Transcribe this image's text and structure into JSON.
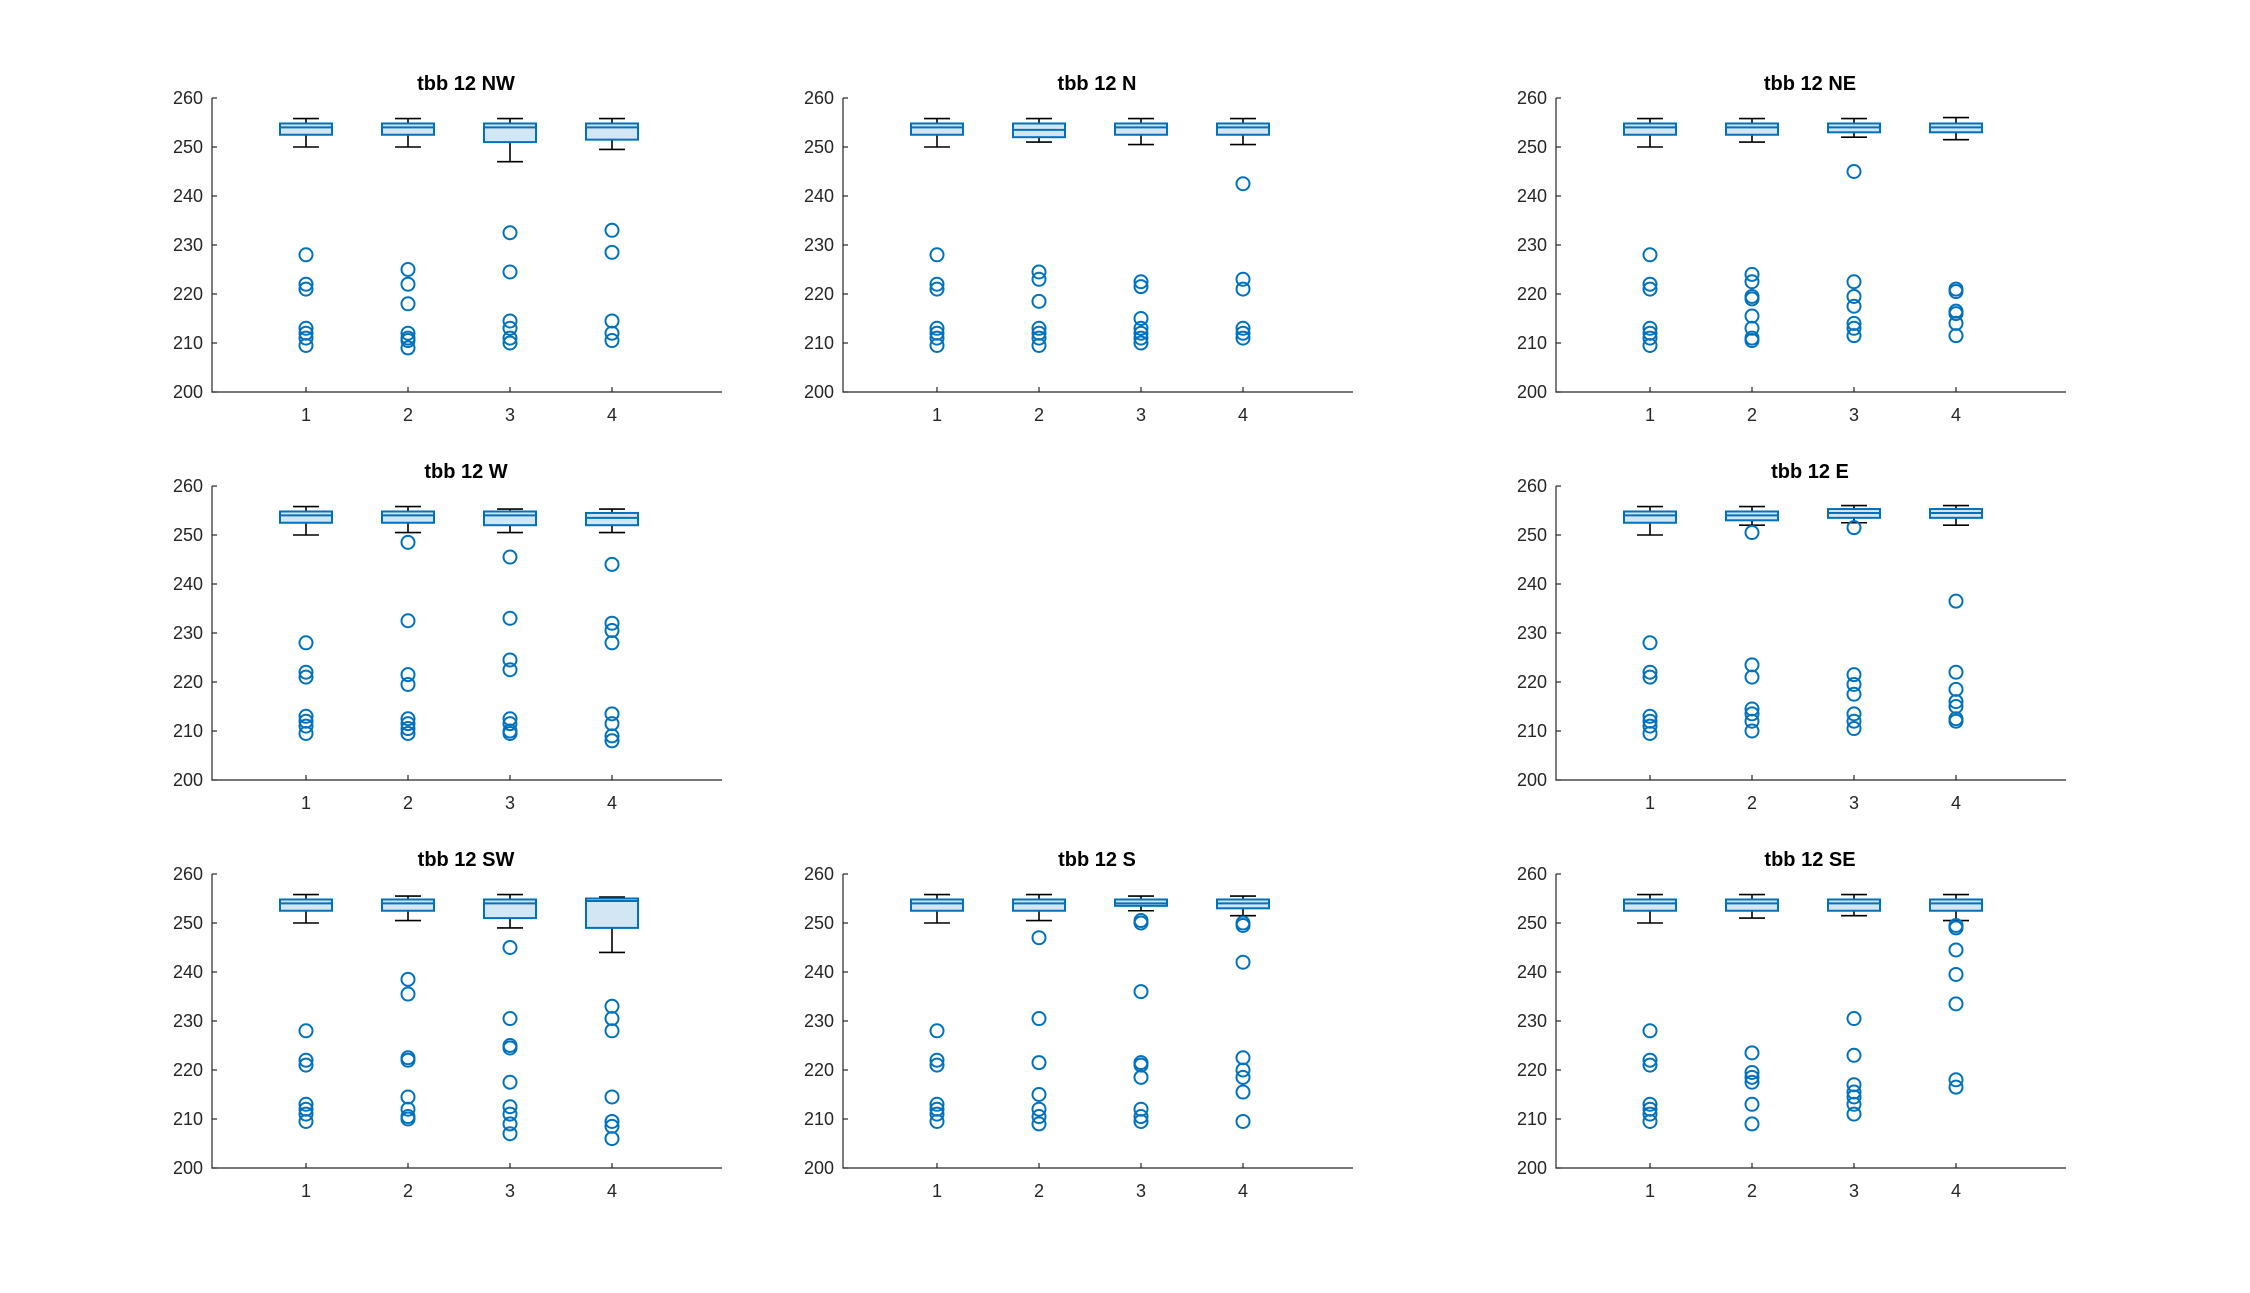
{
  "chart_data": [
    {
      "type": "box",
      "title": "tbb 12 NW",
      "categories": [
        "1",
        "2",
        "3",
        "4"
      ],
      "ylim": [
        200,
        260
      ],
      "yticks": [
        200,
        210,
        220,
        230,
        240,
        250,
        260
      ],
      "grid": false,
      "boxes": [
        {
          "min": 250,
          "q1": 252.5,
          "median": 254,
          "q3": 254.8,
          "max": 255.8,
          "outliers": [
            228,
            222,
            221,
            213,
            212,
            211,
            209.5
          ]
        },
        {
          "min": 250,
          "q1": 252.5,
          "median": 254,
          "q3": 254.8,
          "max": 255.8,
          "outliers": [
            225,
            222,
            218,
            212,
            211,
            210.5,
            209
          ]
        },
        {
          "min": 247,
          "q1": 251,
          "median": 254,
          "q3": 254.8,
          "max": 255.8,
          "outliers": [
            232.5,
            224.5,
            214.5,
            213,
            211,
            210
          ]
        },
        {
          "min": 249.5,
          "q1": 251.5,
          "median": 254,
          "q3": 254.8,
          "max": 255.8,
          "outliers": [
            233,
            228.5,
            214.5,
            212,
            210.5
          ]
        }
      ]
    },
    {
      "type": "box",
      "title": "tbb 12 N",
      "categories": [
        "1",
        "2",
        "3",
        "4"
      ],
      "ylim": [
        200,
        260
      ],
      "yticks": [
        200,
        210,
        220,
        230,
        240,
        250,
        260
      ],
      "grid": false,
      "boxes": [
        {
          "min": 250,
          "q1": 252.5,
          "median": 254,
          "q3": 254.8,
          "max": 255.8,
          "outliers": [
            228,
            222,
            221,
            213,
            212,
            211,
            209.5
          ]
        },
        {
          "min": 251,
          "q1": 252,
          "median": 253.5,
          "q3": 254.8,
          "max": 255.8,
          "outliers": [
            224.5,
            223,
            218.5,
            213,
            212,
            211,
            209.5
          ]
        },
        {
          "min": 250.5,
          "q1": 252.5,
          "median": 254,
          "q3": 254.8,
          "max": 255.8,
          "outliers": [
            222.5,
            221.5,
            215,
            213,
            212,
            211,
            210
          ]
        },
        {
          "min": 250.5,
          "q1": 252.5,
          "median": 254,
          "q3": 254.8,
          "max": 255.8,
          "outliers": [
            242.5,
            223,
            221,
            213,
            212,
            211
          ]
        }
      ]
    },
    {
      "type": "box",
      "title": "tbb 12 NE",
      "categories": [
        "1",
        "2",
        "3",
        "4"
      ],
      "ylim": [
        200,
        260
      ],
      "yticks": [
        200,
        210,
        220,
        230,
        240,
        250,
        260
      ],
      "grid": false,
      "boxes": [
        {
          "min": 250,
          "q1": 252.5,
          "median": 254,
          "q3": 254.8,
          "max": 255.8,
          "outliers": [
            228,
            222,
            221,
            213,
            212,
            211,
            209.5
          ]
        },
        {
          "min": 251,
          "q1": 252.5,
          "median": 254,
          "q3": 254.8,
          "max": 255.8,
          "outliers": [
            224,
            222.5,
            219.5,
            219,
            215.5,
            213,
            211,
            210.5
          ]
        },
        {
          "min": 252,
          "q1": 253,
          "median": 254,
          "q3": 254.8,
          "max": 255.8,
          "outliers": [
            245,
            222.5,
            219.5,
            217.5,
            214,
            213,
            211.5
          ]
        },
        {
          "min": 251.5,
          "q1": 253,
          "median": 254,
          "q3": 254.8,
          "max": 256,
          "outliers": [
            221,
            220.5,
            216.5,
            216,
            214,
            211.5
          ]
        }
      ]
    },
    {
      "type": "box",
      "title": "tbb 12 W",
      "categories": [
        "1",
        "2",
        "3",
        "4"
      ],
      "ylim": [
        200,
        260
      ],
      "yticks": [
        200,
        210,
        220,
        230,
        240,
        250,
        260
      ],
      "grid": false,
      "boxes": [
        {
          "min": 250,
          "q1": 252.5,
          "median": 254,
          "q3": 254.8,
          "max": 255.8,
          "outliers": [
            228,
            222,
            221,
            213,
            212,
            211,
            209.5
          ]
        },
        {
          "min": 250.5,
          "q1": 252.5,
          "median": 254,
          "q3": 254.8,
          "max": 255.8,
          "outliers": [
            248.5,
            232.5,
            221.5,
            219.5,
            212.5,
            211.5,
            210.5,
            209.5
          ]
        },
        {
          "min": 250.5,
          "q1": 252,
          "median": 254,
          "q3": 254.8,
          "max": 255.3,
          "outliers": [
            245.5,
            233,
            224.5,
            222.5,
            212.5,
            211.5,
            210,
            209.5
          ]
        },
        {
          "min": 250.5,
          "q1": 252,
          "median": 253.5,
          "q3": 254.5,
          "max": 255.3,
          "outliers": [
            244,
            232,
            230.5,
            228,
            213.5,
            211.5,
            209,
            208
          ]
        }
      ]
    },
    {
      "type": "box",
      "title": "tbb 12 E",
      "categories": [
        "1",
        "2",
        "3",
        "4"
      ],
      "ylim": [
        200,
        260
      ],
      "yticks": [
        200,
        210,
        220,
        230,
        240,
        250,
        260
      ],
      "grid": false,
      "boxes": [
        {
          "min": 250,
          "q1": 252.5,
          "median": 254,
          "q3": 254.8,
          "max": 255.8,
          "outliers": [
            228,
            222,
            221,
            213,
            212,
            211,
            209.5
          ]
        },
        {
          "min": 252,
          "q1": 253,
          "median": 254,
          "q3": 254.8,
          "max": 255.8,
          "outliers": [
            250.5,
            223.5,
            221,
            214.5,
            213.5,
            212,
            210
          ]
        },
        {
          "min": 252.5,
          "q1": 253.5,
          "median": 254.5,
          "q3": 255.3,
          "max": 256,
          "outliers": [
            251.5,
            221.5,
            219.5,
            217.5,
            213.5,
            212,
            210.5
          ]
        },
        {
          "min": 252,
          "q1": 253.5,
          "median": 254.5,
          "q3": 255.3,
          "max": 256,
          "outliers": [
            236.5,
            222,
            218.5,
            216,
            215,
            212.5,
            212
          ]
        }
      ]
    },
    {
      "type": "box",
      "title": "tbb 12 SW",
      "categories": [
        "1",
        "2",
        "3",
        "4"
      ],
      "ylim": [
        200,
        260
      ],
      "yticks": [
        200,
        210,
        220,
        230,
        240,
        250,
        260
      ],
      "grid": false,
      "boxes": [
        {
          "min": 250,
          "q1": 252.5,
          "median": 254,
          "q3": 254.8,
          "max": 255.8,
          "outliers": [
            228,
            222,
            221,
            213,
            212,
            211,
            209.5
          ]
        },
        {
          "min": 250.5,
          "q1": 252.5,
          "median": 254,
          "q3": 254.8,
          "max": 255.5,
          "outliers": [
            238.5,
            235.5,
            222.5,
            222,
            214.5,
            212,
            210.5,
            210
          ]
        },
        {
          "min": 249,
          "q1": 251,
          "median": 254,
          "q3": 254.8,
          "max": 255.8,
          "outliers": [
            245,
            230.5,
            225,
            224.5,
            217.5,
            212.5,
            211,
            209,
            207
          ]
        },
        {
          "min": 244,
          "q1": 249,
          "median": 254.5,
          "q3": 255,
          "max": 255.3,
          "outliers": [
            233,
            230.5,
            228,
            214.5,
            209.5,
            208.5,
            206
          ]
        }
      ]
    },
    {
      "type": "box",
      "title": "tbb 12 S",
      "categories": [
        "1",
        "2",
        "3",
        "4"
      ],
      "ylim": [
        200,
        260
      ],
      "yticks": [
        200,
        210,
        220,
        230,
        240,
        250,
        260
      ],
      "grid": false,
      "boxes": [
        {
          "min": 250,
          "q1": 252.5,
          "median": 254,
          "q3": 254.8,
          "max": 255.8,
          "outliers": [
            228,
            222,
            221,
            213,
            212,
            211,
            209.5
          ]
        },
        {
          "min": 250.5,
          "q1": 252.5,
          "median": 254,
          "q3": 254.8,
          "max": 255.8,
          "outliers": [
            247,
            230.5,
            221.5,
            215,
            212,
            210.5,
            209
          ]
        },
        {
          "min": 252.5,
          "q1": 253.5,
          "median": 254,
          "q3": 254.8,
          "max": 255.5,
          "outliers": [
            250.5,
            250,
            236,
            221.5,
            221,
            218.5,
            212,
            210.5,
            209.5
          ]
        },
        {
          "min": 251.5,
          "q1": 253,
          "median": 254,
          "q3": 254.8,
          "max": 255.5,
          "outliers": [
            250,
            249.5,
            242,
            222.5,
            220,
            218.5,
            215.5,
            209.5
          ]
        }
      ]
    },
    {
      "type": "box",
      "title": "tbb 12 SE",
      "categories": [
        "1",
        "2",
        "3",
        "4"
      ],
      "ylim": [
        200,
        260
      ],
      "yticks": [
        200,
        210,
        220,
        230,
        240,
        250,
        260
      ],
      "grid": false,
      "boxes": [
        {
          "min": 250,
          "q1": 252.5,
          "median": 254,
          "q3": 254.8,
          "max": 255.8,
          "outliers": [
            228,
            222,
            221,
            213,
            212,
            211,
            209.5
          ]
        },
        {
          "min": 251,
          "q1": 252.5,
          "median": 254,
          "q3": 254.8,
          "max": 255.8,
          "outliers": [
            223.5,
            219.5,
            218.5,
            217.5,
            213,
            209
          ]
        },
        {
          "min": 251.5,
          "q1": 252.5,
          "median": 254,
          "q3": 254.8,
          "max": 255.8,
          "outliers": [
            230.5,
            223,
            217,
            215.5,
            214.5,
            213,
            211
          ]
        },
        {
          "min": 250.5,
          "q1": 252.5,
          "median": 254,
          "q3": 254.8,
          "max": 255.8,
          "outliers": [
            249.5,
            249,
            244.5,
            239.5,
            233.5,
            218,
            216.5
          ]
        }
      ]
    }
  ]
}
